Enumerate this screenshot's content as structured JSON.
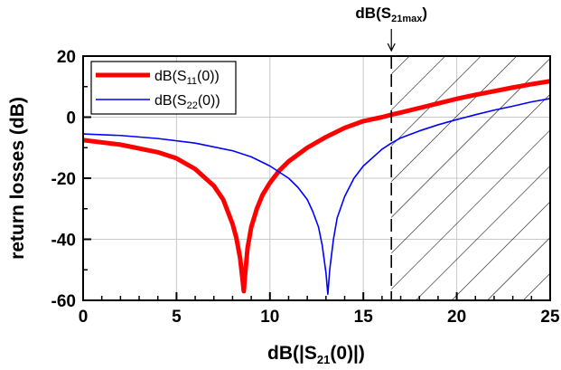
{
  "chart_data": {
    "type": "line",
    "xlabel": {
      "pre": "dB(|S",
      "sub": "21",
      "post": "(0)|)"
    },
    "ylabel": "return losses (dB)",
    "xlim": [
      0,
      25
    ],
    "ylim": [
      -60,
      20
    ],
    "xticks": [
      0,
      5,
      10,
      15,
      20,
      25
    ],
    "yticks": [
      20,
      0,
      -20,
      -40,
      -60
    ],
    "grid": true,
    "legend_position": "top-left",
    "series": [
      {
        "key": "s11",
        "legend": {
          "pre": "dB(S",
          "sub": "11",
          "post": "(0))"
        },
        "color": "#ff0000",
        "x": [
          0,
          2,
          4,
          5,
          6,
          7,
          7.5,
          8,
          8.2,
          8.4,
          8.55,
          8.6,
          8.65,
          8.8,
          9,
          9.3,
          9.6,
          10,
          10.5,
          11,
          12,
          13,
          14,
          15,
          16,
          16.5,
          17,
          18,
          19,
          20,
          21,
          22,
          23,
          24,
          25
        ],
        "y": [
          -7.5,
          -9,
          -11.5,
          -13.5,
          -17,
          -22.5,
          -27,
          -35,
          -39.5,
          -46,
          -54,
          -57,
          -53,
          -43,
          -36,
          -30,
          -25.5,
          -21.5,
          -17.5,
          -14.5,
          -10,
          -6.5,
          -3.5,
          -1.3,
          0,
          0.8,
          1.5,
          3,
          4.5,
          6,
          7.3,
          8.5,
          9.7,
          10.8,
          11.8
        ]
      },
      {
        "key": "s22",
        "legend": {
          "pre": "dB(S",
          "sub": "22",
          "post": "(0))"
        },
        "color": "#0000ff",
        "x": [
          0,
          2,
          4,
          6,
          8,
          9,
          10,
          11,
          11.5,
          12,
          12.3,
          12.6,
          12.8,
          13,
          13.1,
          13.2,
          13.4,
          13.6,
          14,
          14.5,
          15,
          16,
          16.5,
          17,
          18,
          19,
          20,
          21,
          22,
          23,
          24,
          25
        ],
        "y": [
          -5.5,
          -6,
          -7,
          -8.5,
          -11,
          -13,
          -16,
          -20,
          -23,
          -27,
          -31,
          -36,
          -42,
          -51,
          -58,
          -50,
          -40,
          -33,
          -26,
          -20,
          -16,
          -10.5,
          -8.5,
          -6.8,
          -4.5,
          -2.5,
          -0.8,
          0.8,
          2.3,
          3.6,
          5,
          6.1
        ]
      }
    ],
    "hatched_region": {
      "from": 16.5,
      "to": 25
    },
    "annotations": [
      {
        "x": 16.5,
        "label": {
          "pre": "dB(S",
          "sub": "21max",
          "post": ")"
        },
        "style": "dashed-vertical-with-arrow"
      }
    ]
  }
}
